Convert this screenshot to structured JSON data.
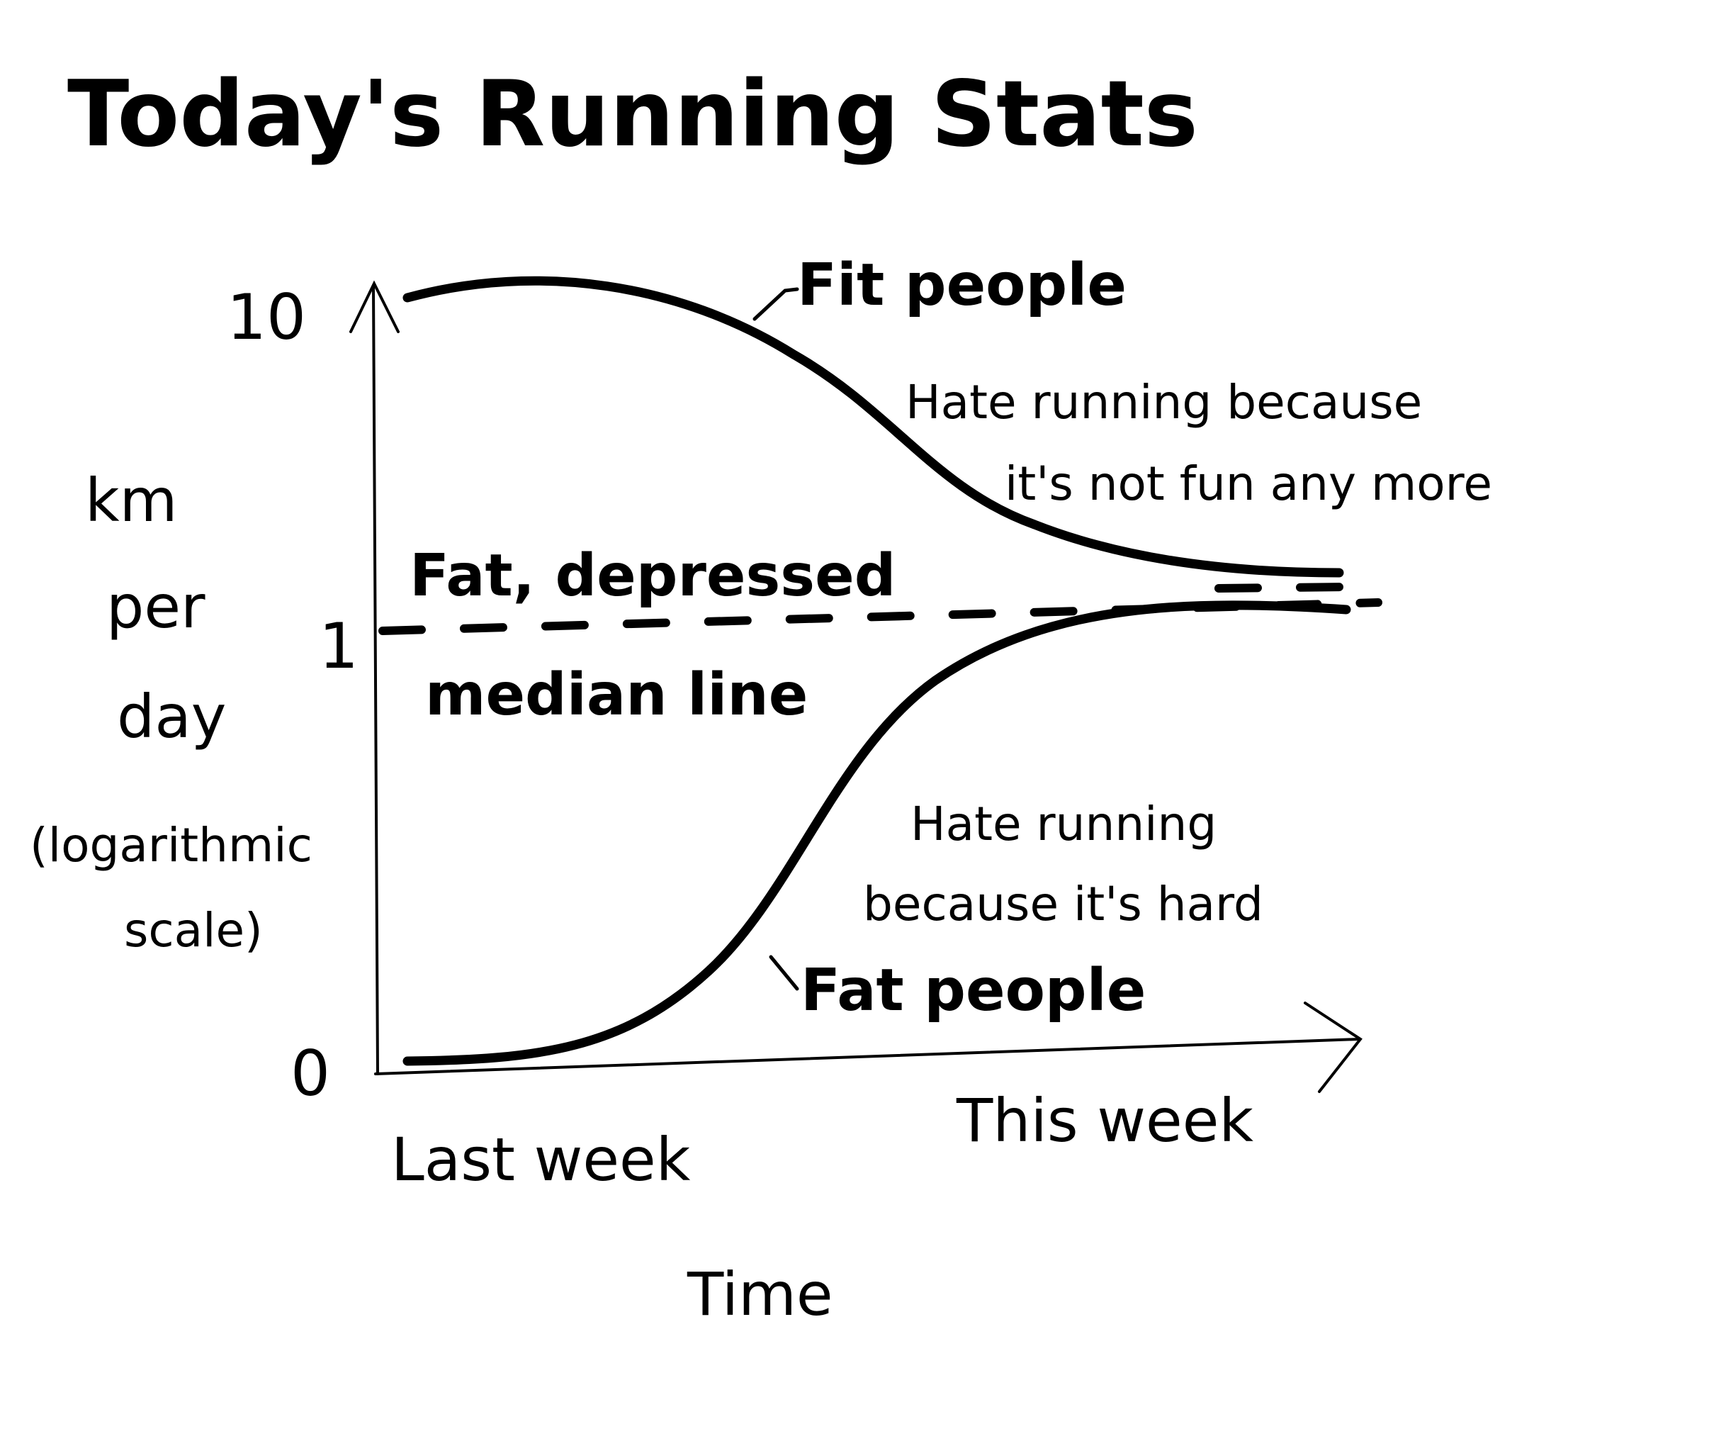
{
  "chart_data": {
    "type": "line",
    "title": "Today's Running Stats",
    "ylabel_lines": [
      "km",
      "per",
      "day",
      "(logarithmic",
      "scale)"
    ],
    "xlabel": "Time",
    "x_categories": [
      "Last week",
      "This week"
    ],
    "y_scale": "log",
    "y_ticks": [
      "0",
      "1",
      "10"
    ],
    "series": [
      {
        "name": "Fit people",
        "note_lines": [
          "Hate running because",
          "it's not fun any more"
        ],
        "points": [
          [
            0.0,
            10
          ],
          [
            0.2,
            9.8
          ],
          [
            0.4,
            6
          ],
          [
            0.6,
            2.6
          ],
          [
            0.8,
            1.5
          ],
          [
            1.0,
            1.3
          ]
        ]
      },
      {
        "name": "Fat people",
        "note_lines": [
          "Hate running",
          "because it's hard"
        ],
        "points": [
          [
            0.0,
            0
          ],
          [
            0.2,
            0.05
          ],
          [
            0.4,
            0.2
          ],
          [
            0.6,
            0.6
          ],
          [
            0.8,
            0.88
          ],
          [
            1.0,
            1.0
          ]
        ]
      }
    ],
    "reference_line": {
      "label_lines": [
        "Fat, depressed",
        "median line"
      ],
      "value": 1
    }
  }
}
